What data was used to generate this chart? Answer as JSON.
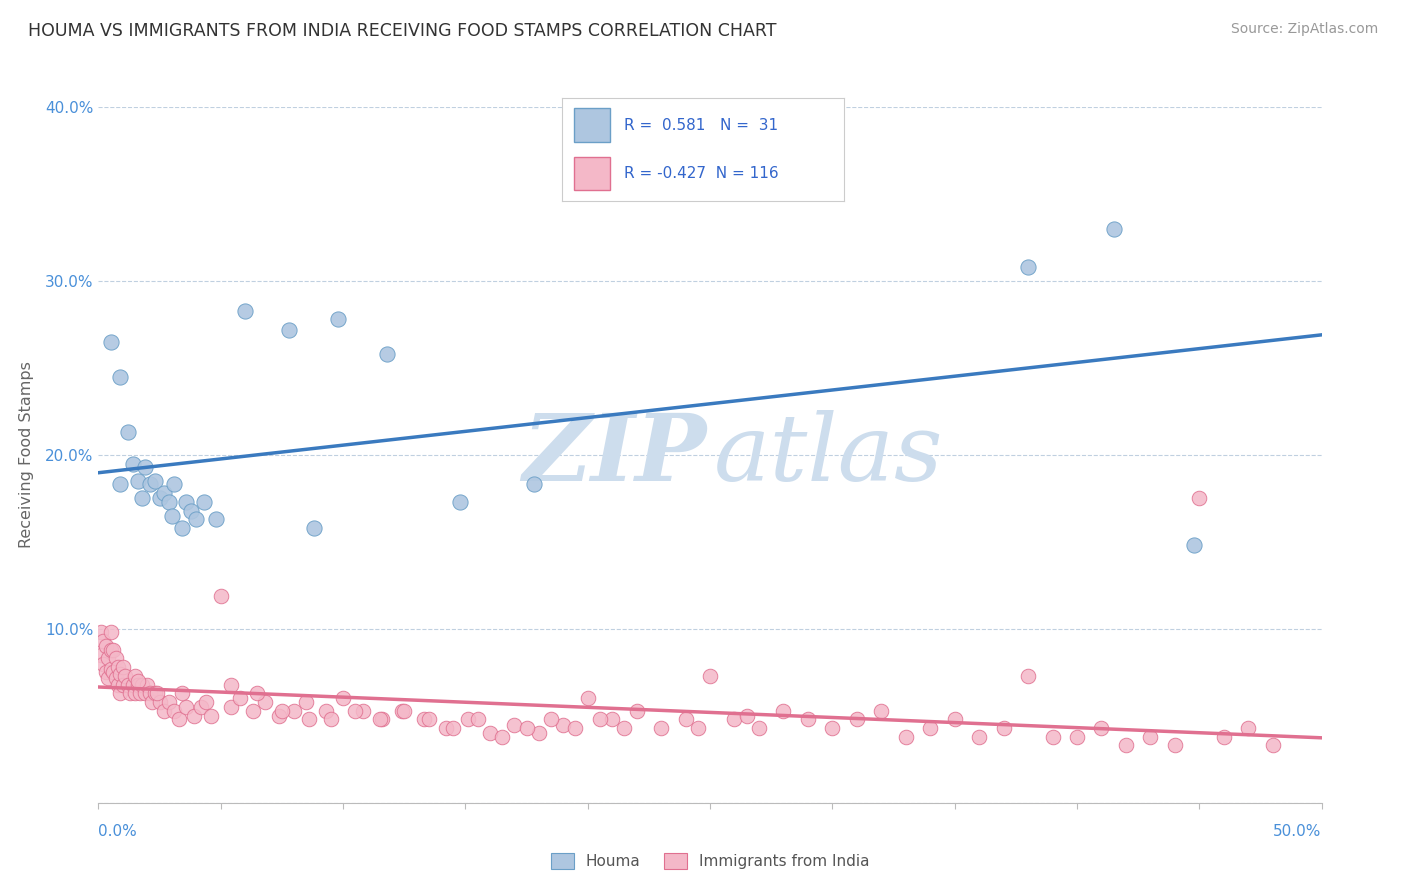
{
  "title": "HOUMA VS IMMIGRANTS FROM INDIA RECEIVING FOOD STAMPS CORRELATION CHART",
  "source": "Source: ZipAtlas.com",
  "ylabel": "Receiving Food Stamps",
  "xlim": [
    0.0,
    0.5
  ],
  "ylim": [
    0.0,
    0.4
  ],
  "yticks": [
    0.0,
    0.1,
    0.2,
    0.3,
    0.4
  ],
  "ytick_labels": [
    "",
    "10.0%",
    "20.0%",
    "30.0%",
    "40.0%"
  ],
  "blue_R": "0.581",
  "blue_N": "31",
  "pink_R": "-0.427",
  "pink_N": "116",
  "blue_scatter_color": "#aec6e0",
  "blue_edge_color": "#6b9fc7",
  "pink_scatter_color": "#f4b8c8",
  "pink_edge_color": "#e07090",
  "blue_line_color": "#3a7abf",
  "pink_line_color": "#e07090",
  "legend_R_color": "#3366cc",
  "watermark_zip_color": "#cddded",
  "watermark_atlas_color": "#cddded",
  "grid_color": "#c0d0e0",
  "axis_label_color": "#4a90d9",
  "background": "#ffffff",
  "blue_points": [
    [
      0.005,
      0.265
    ],
    [
      0.009,
      0.245
    ],
    [
      0.009,
      0.183
    ],
    [
      0.012,
      0.213
    ],
    [
      0.014,
      0.195
    ],
    [
      0.016,
      0.185
    ],
    [
      0.018,
      0.175
    ],
    [
      0.019,
      0.193
    ],
    [
      0.021,
      0.183
    ],
    [
      0.023,
      0.185
    ],
    [
      0.025,
      0.175
    ],
    [
      0.027,
      0.178
    ],
    [
      0.029,
      0.173
    ],
    [
      0.03,
      0.165
    ],
    [
      0.031,
      0.183
    ],
    [
      0.034,
      0.158
    ],
    [
      0.036,
      0.173
    ],
    [
      0.038,
      0.168
    ],
    [
      0.04,
      0.163
    ],
    [
      0.043,
      0.173
    ],
    [
      0.048,
      0.163
    ],
    [
      0.06,
      0.283
    ],
    [
      0.078,
      0.272
    ],
    [
      0.088,
      0.158
    ],
    [
      0.098,
      0.278
    ],
    [
      0.118,
      0.258
    ],
    [
      0.148,
      0.173
    ],
    [
      0.178,
      0.183
    ],
    [
      0.38,
      0.308
    ],
    [
      0.415,
      0.33
    ],
    [
      0.448,
      0.148
    ]
  ],
  "pink_points": [
    [
      0.001,
      0.098
    ],
    [
      0.001,
      0.085
    ],
    [
      0.002,
      0.093
    ],
    [
      0.002,
      0.08
    ],
    [
      0.003,
      0.09
    ],
    [
      0.003,
      0.075
    ],
    [
      0.004,
      0.083
    ],
    [
      0.004,
      0.072
    ],
    [
      0.005,
      0.098
    ],
    [
      0.005,
      0.088
    ],
    [
      0.005,
      0.077
    ],
    [
      0.006,
      0.088
    ],
    [
      0.006,
      0.075
    ],
    [
      0.007,
      0.083
    ],
    [
      0.007,
      0.072
    ],
    [
      0.008,
      0.078
    ],
    [
      0.008,
      0.068
    ],
    [
      0.009,
      0.074
    ],
    [
      0.009,
      0.063
    ],
    [
      0.01,
      0.078
    ],
    [
      0.01,
      0.068
    ],
    [
      0.011,
      0.073
    ],
    [
      0.012,
      0.068
    ],
    [
      0.013,
      0.063
    ],
    [
      0.014,
      0.068
    ],
    [
      0.015,
      0.073
    ],
    [
      0.015,
      0.063
    ],
    [
      0.016,
      0.068
    ],
    [
      0.017,
      0.063
    ],
    [
      0.018,
      0.068
    ],
    [
      0.019,
      0.063
    ],
    [
      0.02,
      0.068
    ],
    [
      0.021,
      0.063
    ],
    [
      0.022,
      0.058
    ],
    [
      0.023,
      0.063
    ],
    [
      0.025,
      0.058
    ],
    [
      0.027,
      0.053
    ],
    [
      0.029,
      0.058
    ],
    [
      0.031,
      0.053
    ],
    [
      0.033,
      0.048
    ],
    [
      0.036,
      0.055
    ],
    [
      0.039,
      0.05
    ],
    [
      0.042,
      0.055
    ],
    [
      0.046,
      0.05
    ],
    [
      0.05,
      0.119
    ],
    [
      0.054,
      0.055
    ],
    [
      0.058,
      0.06
    ],
    [
      0.063,
      0.053
    ],
    [
      0.068,
      0.058
    ],
    [
      0.074,
      0.05
    ],
    [
      0.08,
      0.053
    ],
    [
      0.086,
      0.048
    ],
    [
      0.093,
      0.053
    ],
    [
      0.1,
      0.06
    ],
    [
      0.108,
      0.053
    ],
    [
      0.116,
      0.048
    ],
    [
      0.124,
      0.053
    ],
    [
      0.133,
      0.048
    ],
    [
      0.142,
      0.043
    ],
    [
      0.151,
      0.048
    ],
    [
      0.16,
      0.04
    ],
    [
      0.17,
      0.045
    ],
    [
      0.18,
      0.04
    ],
    [
      0.19,
      0.045
    ],
    [
      0.2,
      0.06
    ],
    [
      0.21,
      0.048
    ],
    [
      0.22,
      0.053
    ],
    [
      0.23,
      0.043
    ],
    [
      0.24,
      0.048
    ],
    [
      0.25,
      0.073
    ],
    [
      0.26,
      0.048
    ],
    [
      0.27,
      0.043
    ],
    [
      0.28,
      0.053
    ],
    [
      0.29,
      0.048
    ],
    [
      0.3,
      0.043
    ],
    [
      0.31,
      0.048
    ],
    [
      0.32,
      0.053
    ],
    [
      0.33,
      0.038
    ],
    [
      0.34,
      0.043
    ],
    [
      0.35,
      0.048
    ],
    [
      0.36,
      0.038
    ],
    [
      0.37,
      0.043
    ],
    [
      0.38,
      0.073
    ],
    [
      0.39,
      0.038
    ],
    [
      0.4,
      0.038
    ],
    [
      0.41,
      0.043
    ],
    [
      0.42,
      0.033
    ],
    [
      0.43,
      0.038
    ],
    [
      0.44,
      0.033
    ],
    [
      0.016,
      0.07
    ],
    [
      0.024,
      0.063
    ],
    [
      0.034,
      0.063
    ],
    [
      0.044,
      0.058
    ],
    [
      0.054,
      0.068
    ],
    [
      0.065,
      0.063
    ],
    [
      0.075,
      0.053
    ],
    [
      0.085,
      0.058
    ],
    [
      0.095,
      0.048
    ],
    [
      0.105,
      0.053
    ],
    [
      0.115,
      0.048
    ],
    [
      0.125,
      0.053
    ],
    [
      0.135,
      0.048
    ],
    [
      0.145,
      0.043
    ],
    [
      0.155,
      0.048
    ],
    [
      0.165,
      0.038
    ],
    [
      0.175,
      0.043
    ],
    [
      0.185,
      0.048
    ],
    [
      0.195,
      0.043
    ],
    [
      0.205,
      0.048
    ],
    [
      0.215,
      0.043
    ],
    [
      0.245,
      0.043
    ],
    [
      0.265,
      0.05
    ],
    [
      0.45,
      0.175
    ],
    [
      0.46,
      0.038
    ],
    [
      0.47,
      0.043
    ],
    [
      0.48,
      0.033
    ]
  ]
}
